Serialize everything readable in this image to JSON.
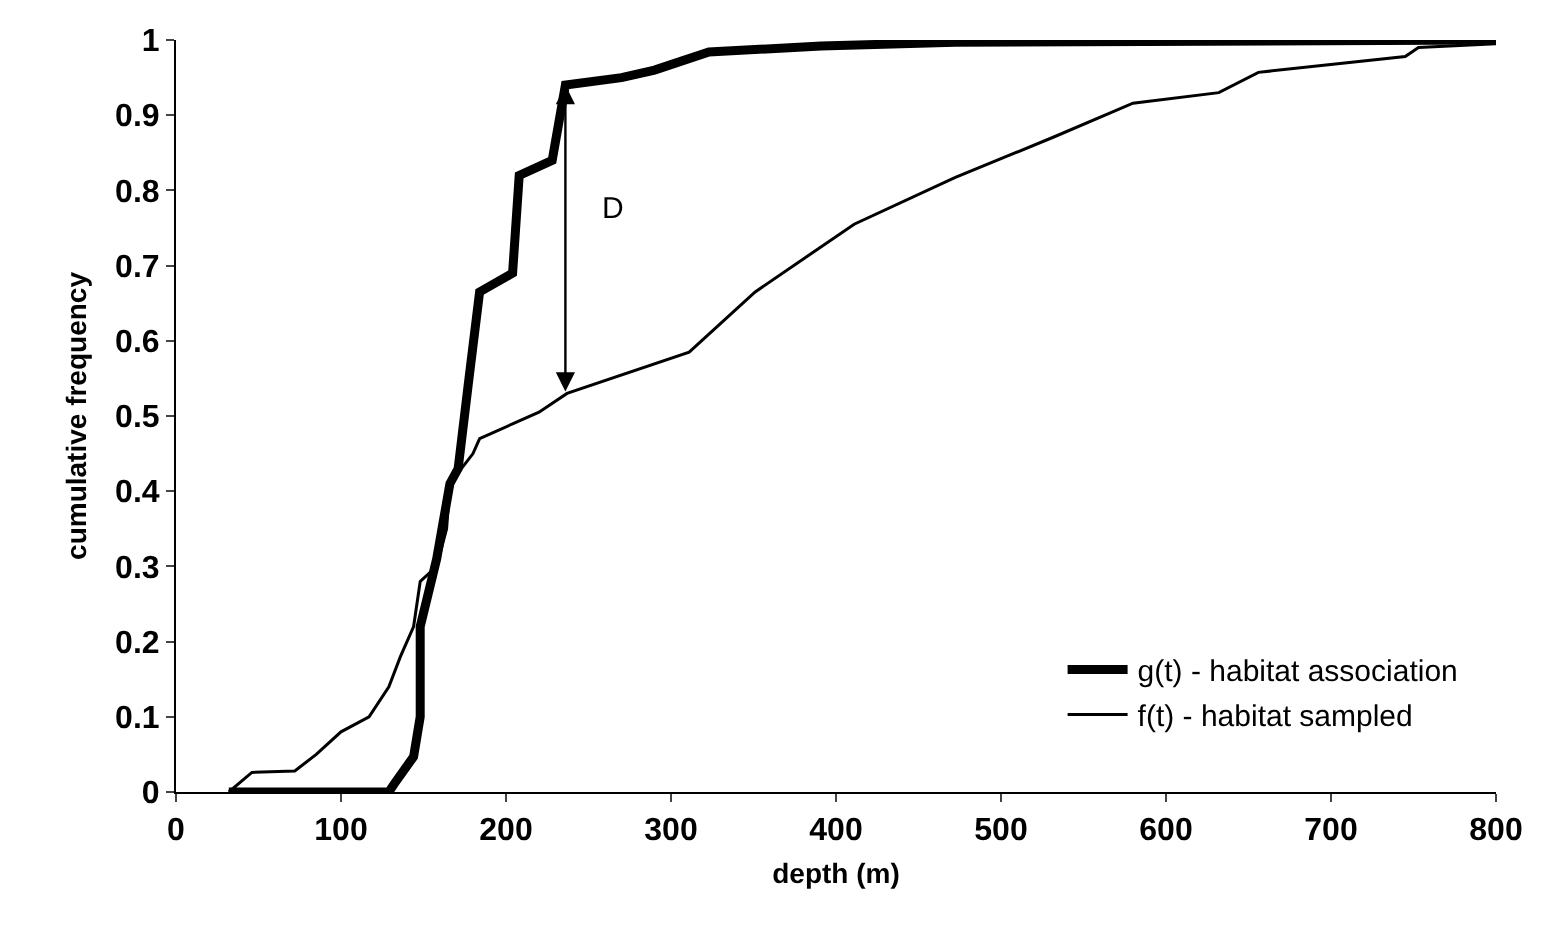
{
  "chart_data": {
    "type": "line",
    "xlabel": "depth (m)",
    "ylabel": "cumulative frequency",
    "xlim": [
      0,
      800
    ],
    "xticks": [
      0,
      100,
      200,
      300,
      400,
      500,
      600,
      700,
      800
    ],
    "ylim": [
      0,
      1
    ],
    "yticks": [
      0,
      0.1,
      0.2,
      0.3,
      0.4,
      0.5,
      0.6,
      0.7,
      0.8,
      0.9,
      1
    ],
    "grid": false,
    "legend": "bottom right",
    "marker": "none",
    "line_style": "solid",
    "series": [
      {
        "name": "g(t) - habitat association",
        "color": "#000000",
        "x": [
          32,
          129,
          132,
          144,
          148,
          148,
          158,
          166,
          171,
          177,
          184,
          204,
          208,
          228,
          236,
          270,
          290,
          323,
          391,
          472,
          800
        ],
        "values": [
          0,
          0,
          0.01,
          0.047,
          0.1,
          0.22,
          0.31,
          0.41,
          0.43,
          0.54,
          0.665,
          0.69,
          0.82,
          0.84,
          0.94,
          0.95,
          0.96,
          0.984,
          0.992,
          0.997,
          1
        ]
      },
      {
        "name": "f(t) - habitat sampled",
        "color": "#000000",
        "x": [
          32,
          46,
          72,
          85,
          100,
          117,
          129,
          136,
          144,
          148,
          158,
          164,
          166,
          180,
          184,
          220,
          237,
          311,
          351,
          411,
          472,
          532,
          580,
          632,
          656,
          745,
          753,
          800
        ],
        "values": [
          0,
          0.026,
          0.028,
          0.05,
          0.08,
          0.1,
          0.14,
          0.18,
          0.22,
          0.28,
          0.3,
          0.35,
          0.41,
          0.45,
          0.47,
          0.505,
          0.53,
          0.585,
          0.665,
          0.755,
          0.817,
          0.871,
          0.916,
          0.93,
          0.957,
          0.978,
          0.99,
          0.995
        ]
      }
    ],
    "annotations": [
      "D"
    ]
  }
}
